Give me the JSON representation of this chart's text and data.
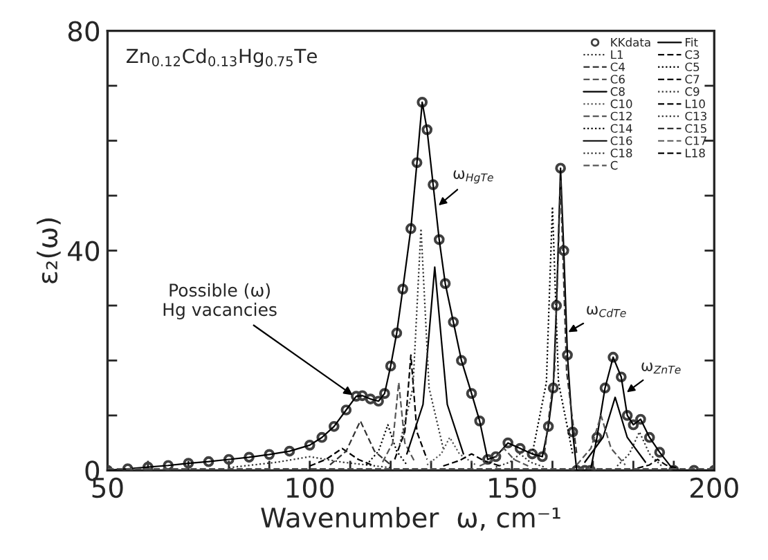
{
  "chart_data": {
    "type": "line",
    "title": "Zn$_{0.12}$Cd$_{0.13}$Hg$_{0.75}$Te",
    "xlabel": "Wavenumber  ω, cm⁻¹",
    "ylabel": "ε₂(ω)",
    "xlim": [
      50,
      200
    ],
    "ylim": [
      0,
      80
    ],
    "xticks": [
      50,
      {
        "value": 60,
        "label": null
      },
      {
        "value": 70,
        "label": null
      },
      {
        "value": 80,
        "label": null
      },
      {
        "value": 90,
        "label": null
      },
      100,
      {
        "value": 110,
        "label": null
      },
      {
        "value": 120,
        "label": null
      },
      {
        "value": 130,
        "label": null
      },
      {
        "value": 140,
        "label": null
      },
      150,
      {
        "value": 160,
        "label": null
      },
      {
        "value": 170,
        "label": null
      },
      {
        "value": 180,
        "label": null
      },
      {
        "value": 190,
        "label": null
      },
      200
    ],
    "yticks": [
      0,
      {
        "value": 10,
        "label": null
      },
      {
        "value": 20,
        "label": null
      },
      {
        "value": 30,
        "label": null
      },
      40,
      {
        "value": 50,
        "label": null
      },
      {
        "value": 60,
        "label": null
      },
      {
        "value": 70,
        "label": null
      },
      80
    ],
    "grid": false,
    "legend": "top right",
    "annotations": [
      {
        "text": "Possible (ω)\nHg vacancies",
        "x": 111,
        "y": 13.5
      },
      {
        "text": "ω$_{HgTe}$",
        "x": 131.5,
        "y": 48
      },
      {
        "text": "ω$_{CdTe}$",
        "x": 163.5,
        "y": 25
      },
      {
        "text": "ω$_{ZnTe}$",
        "x": 178,
        "y": 14
      }
    ],
    "series": [
      {
        "name": "KKdata",
        "type": "scatter",
        "marker": "circle",
        "color": "#404040",
        "x": [
          50,
          55,
          60,
          65,
          70,
          75,
          80,
          85,
          90,
          95,
          100,
          103,
          106,
          109,
          111.5,
          113,
          115,
          117,
          118.5,
          120,
          121.5,
          123,
          125,
          126.5,
          127.8,
          129,
          130.5,
          132,
          133.5,
          135.5,
          137.5,
          140,
          142,
          144,
          146,
          149,
          152,
          155,
          157.5,
          159,
          160.2,
          161,
          162,
          162.8,
          163.7,
          165,
          166,
          168,
          169.4,
          171,
          173,
          175,
          177,
          178.5,
          180,
          181.8,
          184,
          186.5,
          190,
          195,
          200
        ],
        "values": [
          0,
          0.3,
          0.6,
          0.9,
          1.3,
          1.6,
          2,
          2.4,
          2.9,
          3.5,
          4.6,
          6,
          8,
          11,
          13.5,
          13.6,
          13,
          12.6,
          14,
          19,
          25,
          33,
          44,
          56,
          67,
          62,
          52,
          42,
          34,
          27,
          20,
          14,
          9,
          2,
          2.5,
          5,
          4,
          3,
          2.5,
          8,
          15,
          30,
          55,
          40,
          21,
          7,
          0,
          0,
          0,
          6,
          15,
          20.6,
          17,
          10,
          8.3,
          9.3,
          6,
          3.3,
          0,
          0,
          0
        ]
      },
      {
        "name": "Fit",
        "type": "line",
        "line_style": "solid",
        "color": "#000000",
        "x": [
          50,
          55,
          60,
          65,
          70,
          75,
          80,
          85,
          90,
          95,
          100,
          103,
          106,
          109,
          111.5,
          113,
          115,
          117,
          118.5,
          120,
          121.5,
          123,
          125,
          126.5,
          127.8,
          129,
          130.5,
          132,
          133.5,
          135.5,
          137.5,
          140,
          142,
          144,
          146,
          149,
          152,
          155,
          157.5,
          159,
          160.2,
          161,
          162,
          162.8,
          163.7,
          165,
          166,
          168,
          169.4,
          171,
          173,
          175,
          177,
          178.5,
          180,
          181.8,
          184,
          186.5,
          190,
          195,
          200
        ],
        "values": [
          0,
          0.3,
          0.6,
          0.9,
          1.3,
          1.6,
          2,
          2.4,
          2.9,
          3.5,
          4.6,
          6,
          8,
          11,
          13.5,
          13.6,
          13,
          12.6,
          14,
          19,
          25,
          33,
          44,
          56,
          67,
          62,
          52,
          42,
          34,
          27,
          20,
          14,
          9,
          2,
          2.5,
          5,
          4,
          3,
          2.5,
          8,
          15,
          30,
          55,
          40,
          21,
          7,
          0,
          0,
          0,
          6,
          15,
          20.6,
          17,
          10,
          8.3,
          9.3,
          6,
          3.3,
          0,
          0,
          0
        ]
      },
      {
        "name": "L1",
        "line_style": "dotted",
        "color": "#333333",
        "x": [
          80,
          92,
          100,
          108,
          120
        ],
        "values": [
          0.5,
          1.5,
          2.5,
          1.5,
          0.5
        ]
      },
      {
        "name": "C3",
        "line_style": "dashed",
        "color": "#000000",
        "x": [
          100,
          104,
          108,
          112,
          116
        ],
        "values": [
          0.8,
          2,
          4,
          2,
          0.8
        ]
      },
      {
        "name": "C4",
        "line_style": "dashed",
        "color": "#333333",
        "x": [
          105,
          109,
          112.5,
          116,
          120
        ],
        "values": [
          1,
          3.5,
          9,
          3.5,
          1
        ]
      },
      {
        "name": "C5",
        "line_style": "dotted",
        "color": "#000000",
        "x": [
          114,
          117,
          119.3,
          121.5,
          124
        ],
        "values": [
          1,
          3.5,
          8.3,
          3.5,
          1
        ]
      },
      {
        "name": "C6",
        "line_style": "dashed",
        "color": "#555555",
        "x": [
          118,
          120.5,
          122,
          123.5,
          126
        ],
        "values": [
          1.5,
          5,
          16,
          5,
          1.5
        ]
      },
      {
        "name": "C7",
        "line_style": "dashed",
        "color": "#000000",
        "x": [
          121,
          123.5,
          125,
          126.5,
          129
        ],
        "values": [
          2,
          7,
          21,
          7,
          2
        ]
      },
      {
        "name": "C8",
        "line_style": "solid",
        "color": "#000000",
        "x": [
          124,
          128,
          130.9,
          134,
          138
        ],
        "values": [
          3,
          12,
          37,
          12,
          3
        ]
      },
      {
        "name": "C9",
        "line_style": "dotted",
        "color": "#333333",
        "x": [
          122,
          125.5,
          127.5,
          129.5,
          133
        ],
        "values": [
          4,
          15,
          44,
          15,
          4
        ]
      },
      {
        "name": "C10",
        "line_style": "dotted",
        "color": "#555555",
        "x": [
          129,
          132.5,
          134.6,
          137,
          141
        ],
        "values": [
          1,
          3,
          6,
          3,
          1
        ]
      },
      {
        "name": "L10",
        "line_style": "dashed",
        "color": "#000000",
        "x": [
          133,
          137,
          140,
          143,
          147
        ],
        "values": [
          0.8,
          1.8,
          3,
          1.8,
          0.8
        ]
      },
      {
        "name": "C12",
        "line_style": "dashed",
        "color": "#555555",
        "x": [
          142,
          145.5,
          148,
          150.5,
          154
        ],
        "values": [
          0.8,
          2,
          4,
          2,
          0.8
        ]
      },
      {
        "name": "C13",
        "line_style": "dotted",
        "color": "#333333",
        "x": [
          146,
          149.5,
          152,
          154.5,
          158
        ],
        "values": [
          0.6,
          1.5,
          3,
          1.5,
          0.6
        ]
      },
      {
        "name": "C14",
        "line_style": "dotted",
        "color": "#000000",
        "x": [
          155,
          158.5,
          160,
          161.5,
          165
        ],
        "values": [
          3,
          16,
          48,
          16,
          3
        ]
      },
      {
        "name": "C15",
        "line_style": "dashed",
        "color": "#333333",
        "x": [
          158,
          160.5,
          162,
          163.5,
          166
        ],
        "values": [
          3,
          18,
          53,
          18,
          3
        ]
      },
      {
        "name": "C16",
        "line_style": "solid",
        "color": "#000000",
        "x": [
          168,
          172.5,
          175.5,
          178.5,
          183
        ],
        "values": [
          1.5,
          6,
          13.3,
          6,
          1.5
        ]
      },
      {
        "name": "C17",
        "line_style": "dashed",
        "color": "#555555",
        "x": [
          166,
          169.5,
          172,
          174.5,
          178
        ],
        "values": [
          1,
          4,
          10,
          4,
          1
        ]
      },
      {
        "name": "C18",
        "line_style": "dotted",
        "color": "#333333",
        "x": [
          176,
          179,
          181.5,
          184,
          187
        ],
        "values": [
          0.8,
          3,
          7,
          3,
          0.8
        ]
      },
      {
        "name": "L18",
        "line_style": "dashed",
        "color": "#000000",
        "x": [
          181,
          184,
          186,
          188,
          191
        ],
        "values": [
          0.4,
          1,
          2,
          1,
          0.4
        ]
      },
      {
        "name": "C",
        "line_style": "dashed",
        "color": "#555555",
        "x": [
          50,
          100,
          150,
          200
        ],
        "values": [
          0.3,
          0.3,
          0.3,
          0.3
        ]
      }
    ]
  }
}
